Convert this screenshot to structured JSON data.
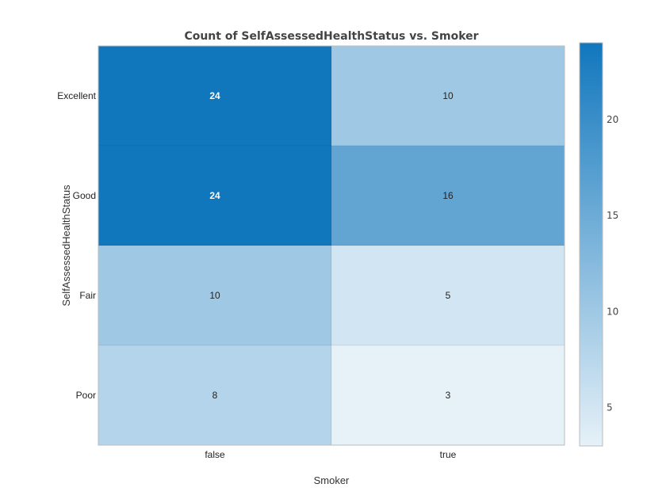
{
  "chart_data": {
    "type": "heatmap",
    "title": "Count of SelfAssessedHealthStatus vs. Smoker",
    "xlabel": "Smoker",
    "ylabel": "SelfAssessedHealthStatus",
    "x_categories": [
      "false",
      "true"
    ],
    "y_categories": [
      "Excellent",
      "Good",
      "Fair",
      "Poor"
    ],
    "values": [
      [
        24,
        10
      ],
      [
        24,
        16
      ],
      [
        10,
        5
      ],
      [
        8,
        3
      ]
    ],
    "colorbar": {
      "min": 3,
      "max": 24,
      "ticks": [
        5,
        10,
        15,
        20
      ],
      "color_low": "#e6f1f8",
      "color_high": "#1177bd"
    }
  }
}
